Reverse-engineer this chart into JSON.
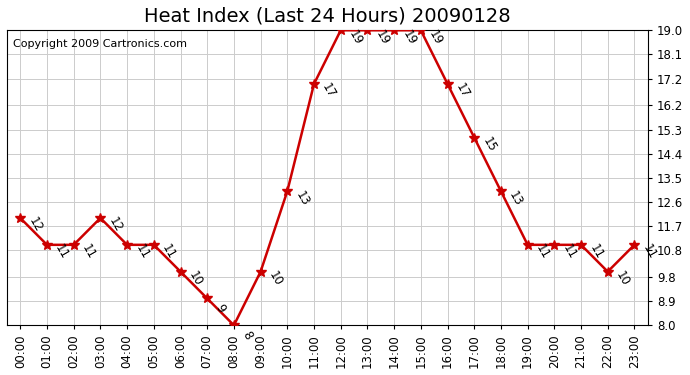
{
  "title": "Heat Index (Last 24 Hours) 20090128",
  "copyright": "Copyright 2009 Cartronics.com",
  "hours": [
    "00:00",
    "01:00",
    "02:00",
    "03:00",
    "04:00",
    "05:00",
    "06:00",
    "07:00",
    "08:00",
    "09:00",
    "10:00",
    "11:00",
    "12:00",
    "13:00",
    "14:00",
    "15:00",
    "16:00",
    "17:00",
    "18:00",
    "19:00",
    "20:00",
    "21:00",
    "22:00",
    "23:00"
  ],
  "values": [
    12,
    11,
    11,
    12,
    11,
    11,
    10,
    9,
    8,
    10,
    13,
    17,
    19,
    19,
    19,
    19,
    17,
    15,
    13,
    11,
    11,
    11,
    10,
    11
  ],
  "line_color": "#cc0000",
  "marker_color": "#cc0000",
  "bg_color": "#ffffff",
  "grid_color": "#cccccc",
  "ylim_min": 8.0,
  "ylim_max": 19.0,
  "yticks": [
    8.0,
    8.9,
    9.8,
    10.8,
    11.7,
    12.6,
    13.5,
    14.4,
    15.3,
    16.2,
    17.2,
    18.1,
    19.0
  ],
  "title_fontsize": 14,
  "label_fontsize": 8.5,
  "copyright_fontsize": 8
}
